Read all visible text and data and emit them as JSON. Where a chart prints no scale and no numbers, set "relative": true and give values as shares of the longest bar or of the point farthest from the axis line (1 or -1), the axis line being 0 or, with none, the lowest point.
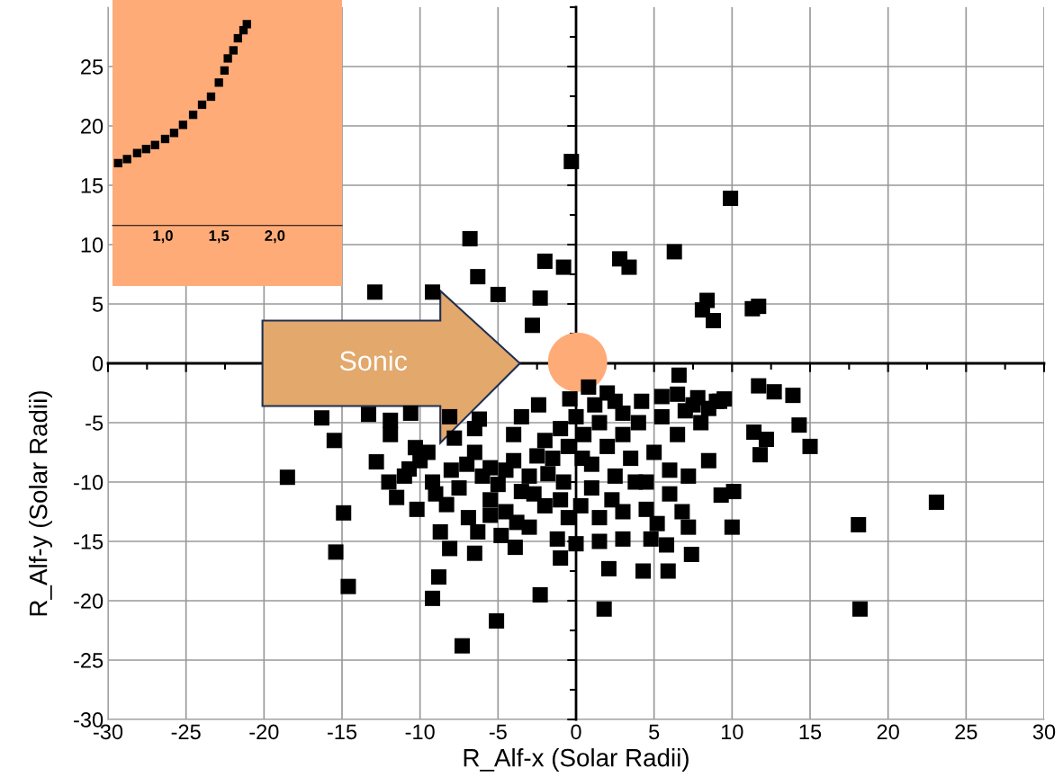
{
  "chart_data": [
    {
      "type": "scatter",
      "xlabel": "R_Alf-x (Solar Radii)",
      "ylabel": "R_Alf-y (Solar Radii)",
      "annotations": [
        "Sonic"
      ],
      "xlim": [
        -30,
        30
      ],
      "ylim": [
        -30,
        30
      ],
      "xticks": [
        -30,
        -25,
        -20,
        -15,
        -10,
        -5,
        0,
        5,
        10,
        15,
        20,
        25,
        30
      ],
      "yticks": [
        -30,
        -25,
        -20,
        -15,
        -10,
        -5,
        0,
        5,
        10,
        15,
        20,
        25
      ],
      "grid": true,
      "marker": "square",
      "series": [
        {
          "color": "#000000",
          "x": [
            -0.3,
            9.9,
            -6.8,
            6.3,
            2.8,
            3.4,
            -2.0,
            -0.8,
            -6.3,
            -12.9,
            -5.0,
            -2.3,
            8.4,
            8.1,
            8.8,
            11.3,
            11.7,
            -2.8,
            -9.2,
            6.6,
            11.7,
            12.7,
            13.9,
            7.8,
            9.2,
            14.3,
            15.0,
            11.4,
            12.2,
            11.8,
            9.3,
            10.1,
            10.0,
            7.4,
            18.1,
            23.1,
            18.2,
            5.9,
            4.3,
            2.1,
            1.8,
            -1.0,
            -2.3,
            -5.1,
            -7.3,
            -9.2,
            -8.8,
            -14.6,
            -15.4,
            -14.9,
            -15.5,
            -18.5,
            -12.8,
            -16.3,
            -13.3,
            -11.9,
            -10.3,
            -8.1,
            -6.5,
            -3.9,
            -3.8,
            -10.2,
            -10.7,
            -9.2,
            -8.3,
            -6.9,
            -8.7,
            -6.3,
            -5.5,
            -8,
            -7.5,
            -7,
            -6.5,
            -6,
            -5.5,
            -5,
            -4.5,
            -4,
            -3.5,
            -3,
            -2.5,
            -2,
            -1.5,
            -1,
            -0.5,
            0,
            0.5,
            1,
            1.5,
            2,
            2.5,
            3,
            3.5,
            4,
            4.5,
            5,
            5.5,
            6,
            6.5,
            7,
            7.5,
            8,
            8.5,
            9,
            -1,
            -0.5,
            0.3,
            1,
            1.5,
            2.3,
            3,
            3.8,
            4.5,
            5.2,
            6,
            6.8,
            7.2,
            -2,
            -3,
            -4.5,
            -5.5,
            -2.7,
            -1.8,
            -0.8,
            0.4,
            1.2,
            2,
            -0.4,
            0.8,
            -2.4,
            -4,
            -3.5,
            -6.5,
            -7.8,
            -9.5,
            -10,
            -11,
            -9,
            4.2,
            5.5,
            6.5,
            3,
            2.5,
            8.5,
            9.5,
            -11.9,
            -10.6,
            -8.1,
            -6.2,
            5.8,
            4.8,
            1.5,
            -1.2,
            0,
            -4.8,
            3,
            7.2,
            -12,
            -11.5
          ],
          "values": [
            17.0,
            13.9,
            10.5,
            9.4,
            8.8,
            8.1,
            8.6,
            8.1,
            7.3,
            6.0,
            5.8,
            5.5,
            5.3,
            4.5,
            3.6,
            4.6,
            4.8,
            3.2,
            6.0,
            -1.0,
            -1.9,
            -2.4,
            -2.7,
            -2.9,
            -3.2,
            -5.2,
            -7.0,
            -5.8,
            -6.4,
            -7.7,
            -11.1,
            -10.8,
            -13.8,
            -16.1,
            -13.6,
            -11.7,
            -20.7,
            -17.5,
            -17.5,
            -17.3,
            -20.7,
            -16.4,
            -19.5,
            -21.7,
            -23.8,
            -19.8,
            -18.0,
            -18.8,
            -15.9,
            -12.6,
            -6.5,
            -9.6,
            -8.3,
            -4.6,
            -4.3,
            -6.0,
            -7.1,
            -15.6,
            -16.0,
            -15.5,
            -13.4,
            -12.3,
            -8.9,
            -10.0,
            -11.9,
            -13.0,
            -14.2,
            -14.2,
            -11.5,
            -9.0,
            -10.5,
            -8.5,
            -7.5,
            -9.5,
            -8.8,
            -10.2,
            -9.0,
            -8.2,
            -10.8,
            -9.5,
            -7.8,
            -6.5,
            -8.0,
            -5.5,
            -7.0,
            -4.5,
            -6.0,
            -8.5,
            -5.0,
            -7.0,
            -9.5,
            -6.0,
            -8.0,
            -5.0,
            -10.0,
            -7.5,
            -4.5,
            -9.0,
            -6.0,
            -4.0,
            -3.5,
            -5.0,
            -3.8,
            -3.2,
            -11.5,
            -13.0,
            -12.0,
            -10.5,
            -13.0,
            -11.5,
            -12.5,
            -10.0,
            -12.3,
            -13.5,
            -11.0,
            -12.5,
            -9.5,
            -12.0,
            -13.8,
            -12.5,
            -12.8,
            -11.0,
            -9.3,
            -10.0,
            -8.0,
            -3.5,
            -2.5,
            -3.0,
            -2.0,
            -3.5,
            -6.0,
            -4.5,
            -5.5,
            -6.3,
            -7.5,
            -8.2,
            -9.5,
            -11.0,
            -3.2,
            -2.8,
            -2.6,
            -4.2,
            -3.2,
            -8.2,
            -3.0,
            -4.8,
            -4.2,
            -4.5,
            -4.7,
            -15.3,
            -14.8,
            -15.0,
            -14.8,
            -15.2,
            -14.5,
            -14.8,
            -13.8,
            -10.0,
            -11.3
          ]
        }
      ]
    },
    {
      "type": "scatter",
      "relative": true,
      "marker": "square",
      "tick_labels": "x",
      "xlim": [
        0.55,
        2.6
      ],
      "xticks": [
        {
          "value": 1.0,
          "label": "1,0"
        },
        {
          "value": 1.5,
          "label": "1,5"
        },
        {
          "value": 2.0,
          "label": "2,0"
        }
      ],
      "series": [
        {
          "color": "#000000",
          "x": [
            0.6,
            0.68,
            0.77,
            0.85,
            0.93,
            1.02,
            1.1,
            1.18,
            1.27,
            1.35,
            1.43,
            1.5,
            1.55,
            1.58,
            1.63,
            1.67,
            1.72,
            1.75
          ],
          "values": [
            0.31,
            0.33,
            0.36,
            0.38,
            0.4,
            0.43,
            0.46,
            0.5,
            0.55,
            0.6,
            0.64,
            0.71,
            0.77,
            0.83,
            0.87,
            0.93,
            0.97,
            1.0
          ]
        }
      ]
    }
  ]
}
